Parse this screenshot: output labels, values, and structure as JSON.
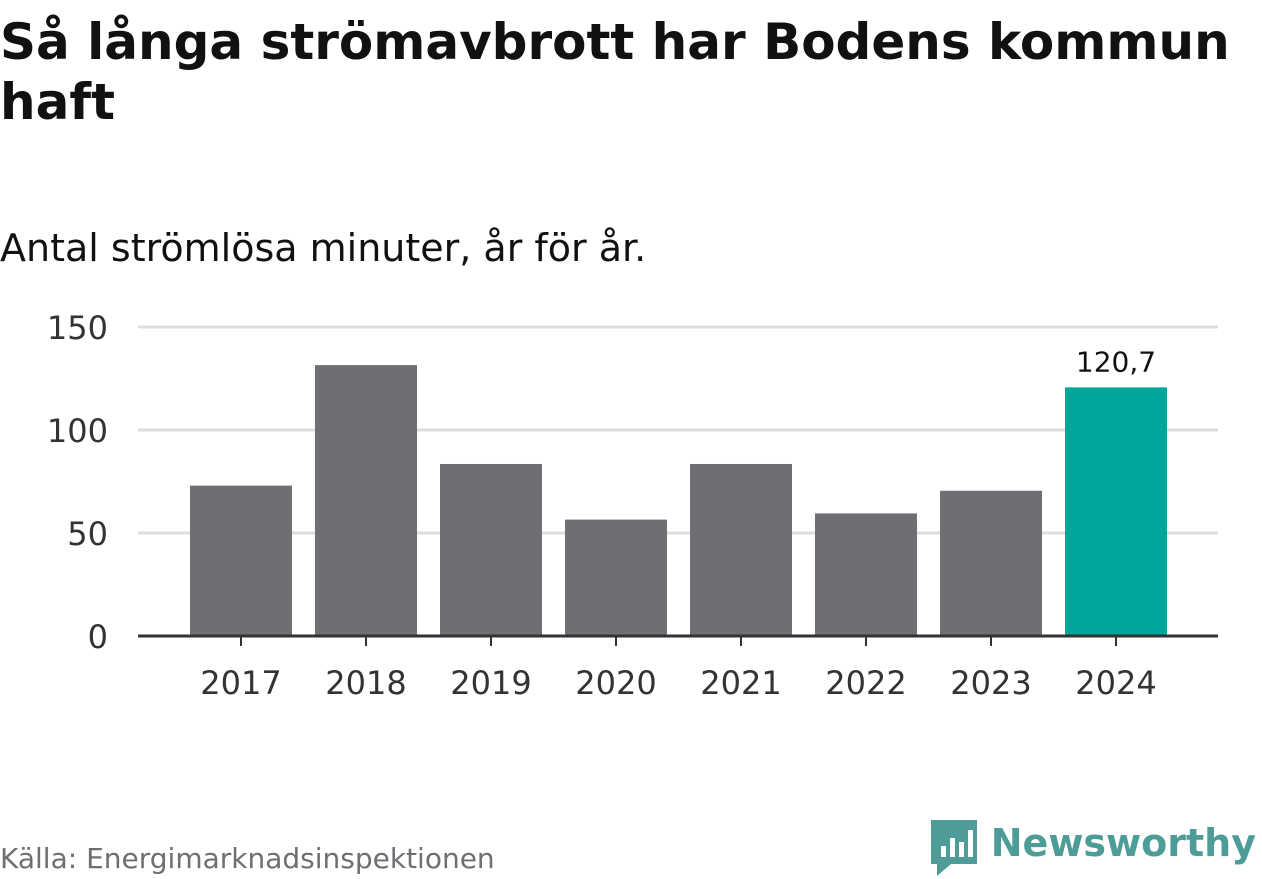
{
  "header": {
    "title": "Så långa strömavbrott har Bodens kommun haft",
    "subtitle": "Antal strömlösa minuter, år för år."
  },
  "footer": {
    "source": "Källa: Energimarknadsinspektionen",
    "brand": "Newsworthy",
    "brand_icon": "newsworthy-logo-icon"
  },
  "colors": {
    "bar": "#6f6e73",
    "highlight": "#00a59c",
    "grid": "#dddddd",
    "axis": "#333333",
    "tick_text": "#333333",
    "brand": "#4d9c98"
  },
  "chart_data": {
    "type": "bar",
    "title": "Så långa strömavbrott har Bodens kommun haft",
    "subtitle": "Antal strömlösa minuter, år för år.",
    "xlabel": "",
    "ylabel": "",
    "categories": [
      "2017",
      "2018",
      "2019",
      "2020",
      "2021",
      "2022",
      "2023",
      "2024"
    ],
    "values": [
      73,
      131.5,
      83.5,
      56.5,
      83.5,
      59.5,
      70.5,
      120.7
    ],
    "highlight_index": 7,
    "data_labels": [
      {
        "index": 7,
        "text": "120,7"
      }
    ],
    "ylim": [
      0,
      150
    ],
    "yticks": [
      0,
      50,
      100,
      150
    ],
    "ytick_labels": [
      "0",
      "50",
      "100",
      "150"
    ],
    "grid": true,
    "legend": "none"
  }
}
